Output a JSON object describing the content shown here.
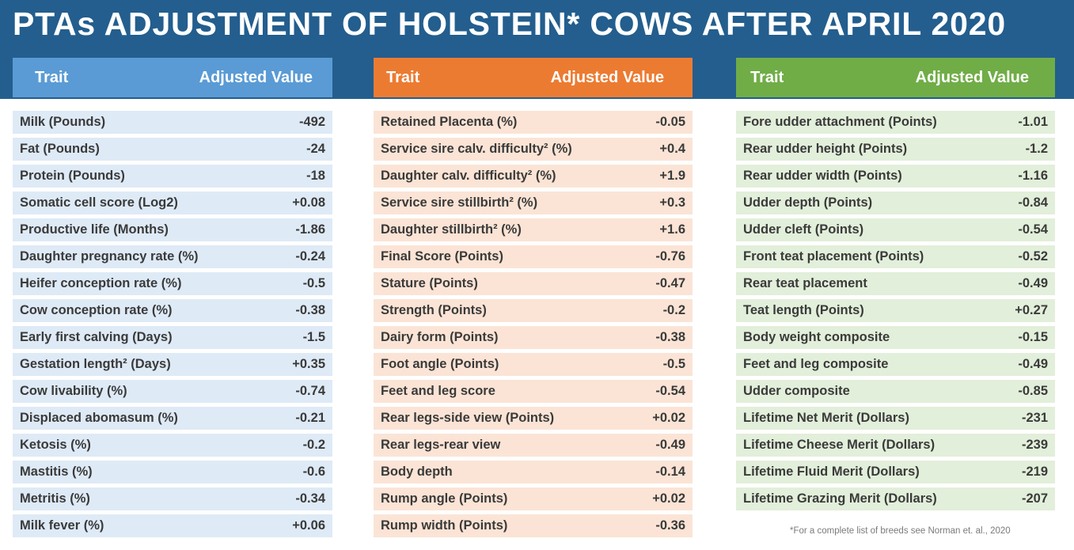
{
  "title": "PTAs ADJUSTMENT OF HOLSTEIN* COWS AFTER APRIL 2020",
  "colors": {
    "banner": "#235e8e",
    "col1_header": "#5a9bd5",
    "col2_header": "#ec7b32",
    "col3_header": "#70ad47",
    "col1_row": "#deeaf6",
    "col2_row": "#fbe4d5",
    "col3_row": "#e2efda"
  },
  "footnote": "*For a complete list of breeds see Norman et. al., 2020",
  "chart_data": {
    "type": "table",
    "title": "PTAs ADJUSTMENT OF HOLSTEIN* COWS AFTER APRIL 2020",
    "columns": [
      "Trait",
      "Adjusted Value"
    ],
    "tables": [
      {
        "trait_header": "Trait",
        "value_header": "Adjusted Value",
        "rows": [
          {
            "trait": "Milk (Pounds)",
            "value": "-492"
          },
          {
            "trait": "Fat (Pounds)",
            "value": "-24"
          },
          {
            "trait": "Protein (Pounds)",
            "value": "-18"
          },
          {
            "trait": "Somatic cell score (Log2)",
            "value": "+0.08"
          },
          {
            "trait": "Productive life (Months)",
            "value": "-1.86"
          },
          {
            "trait": "Daughter pregnancy rate (%)",
            "value": "-0.24"
          },
          {
            "trait": "Heifer conception rate (%)",
            "value": "-0.5"
          },
          {
            "trait": "Cow conception rate (%)",
            "value": "-0.38"
          },
          {
            "trait": "Early first calving (Days)",
            "value": "-1.5"
          },
          {
            "trait": "Gestation length² (Days)",
            "value": "+0.35"
          },
          {
            "trait": "Cow livability (%)",
            "value": "-0.74"
          },
          {
            "trait": "Displaced abomasum (%)",
            "value": "-0.21"
          },
          {
            "trait": "Ketosis (%)",
            "value": "-0.2"
          },
          {
            "trait": "Mastitis (%)",
            "value": "-0.6"
          },
          {
            "trait": "Metritis (%)",
            "value": "-0.34"
          },
          {
            "trait": "Milk fever (%)",
            "value": "+0.06"
          }
        ]
      },
      {
        "trait_header": "Trait",
        "value_header": "Adjusted Value",
        "rows": [
          {
            "trait": "Retained Placenta (%)",
            "value": "-0.05"
          },
          {
            "trait": "Service sire calv. difficulty² (%)",
            "value": "+0.4"
          },
          {
            "trait": "Daughter calv. difficulty² (%)",
            "value": "+1.9"
          },
          {
            "trait": "Service sire stillbirth² (%)",
            "value": "+0.3"
          },
          {
            "trait": "Daughter stillbirth² (%)",
            "value": "+1.6"
          },
          {
            "trait": "Final Score (Points)",
            "value": "-0.76"
          },
          {
            "trait": "Stature (Points)",
            "value": "-0.47"
          },
          {
            "trait": "Strength (Points)",
            "value": "-0.2"
          },
          {
            "trait": "Dairy form (Points)",
            "value": "-0.38"
          },
          {
            "trait": "Foot angle (Points)",
            "value": "-0.5"
          },
          {
            "trait": "Feet and leg score",
            "value": "-0.54"
          },
          {
            "trait": "Rear legs-side view (Points)",
            "value": "+0.02"
          },
          {
            "trait": "Rear legs-rear view",
            "value": "-0.49"
          },
          {
            "trait": "Body depth",
            "value": "-0.14"
          },
          {
            "trait": "Rump angle (Points)",
            "value": "+0.02"
          },
          {
            "trait": "Rump width (Points)",
            "value": "-0.36"
          }
        ]
      },
      {
        "trait_header": "Trait",
        "value_header": "Adjusted Value",
        "rows": [
          {
            "trait": "Fore udder attachment (Points)",
            "value": "-1.01"
          },
          {
            "trait": "Rear udder height (Points)",
            "value": "-1.2"
          },
          {
            "trait": "Rear udder width (Points)",
            "value": "-1.16"
          },
          {
            "trait": "Udder depth (Points)",
            "value": "-0.84"
          },
          {
            "trait": "Udder cleft (Points)",
            "value": "-0.54"
          },
          {
            "trait": "Front teat placement (Points)",
            "value": "-0.52"
          },
          {
            "trait": "Rear teat placement",
            "value": "-0.49"
          },
          {
            "trait": "Teat length (Points)",
            "value": "+0.27"
          },
          {
            "trait": "Body weight composite",
            "value": "-0.15"
          },
          {
            "trait": "Feet and leg composite",
            "value": "-0.49"
          },
          {
            "trait": "Udder composite",
            "value": "-0.85"
          },
          {
            "trait": "Lifetime Net Merit (Dollars)",
            "value": "-231"
          },
          {
            "trait": "Lifetime Cheese Merit (Dollars)",
            "value": "-239"
          },
          {
            "trait": "Lifetime Fluid Merit (Dollars)",
            "value": "-219"
          },
          {
            "trait": "Lifetime Grazing Merit (Dollars)",
            "value": "-207"
          }
        ]
      }
    ]
  }
}
